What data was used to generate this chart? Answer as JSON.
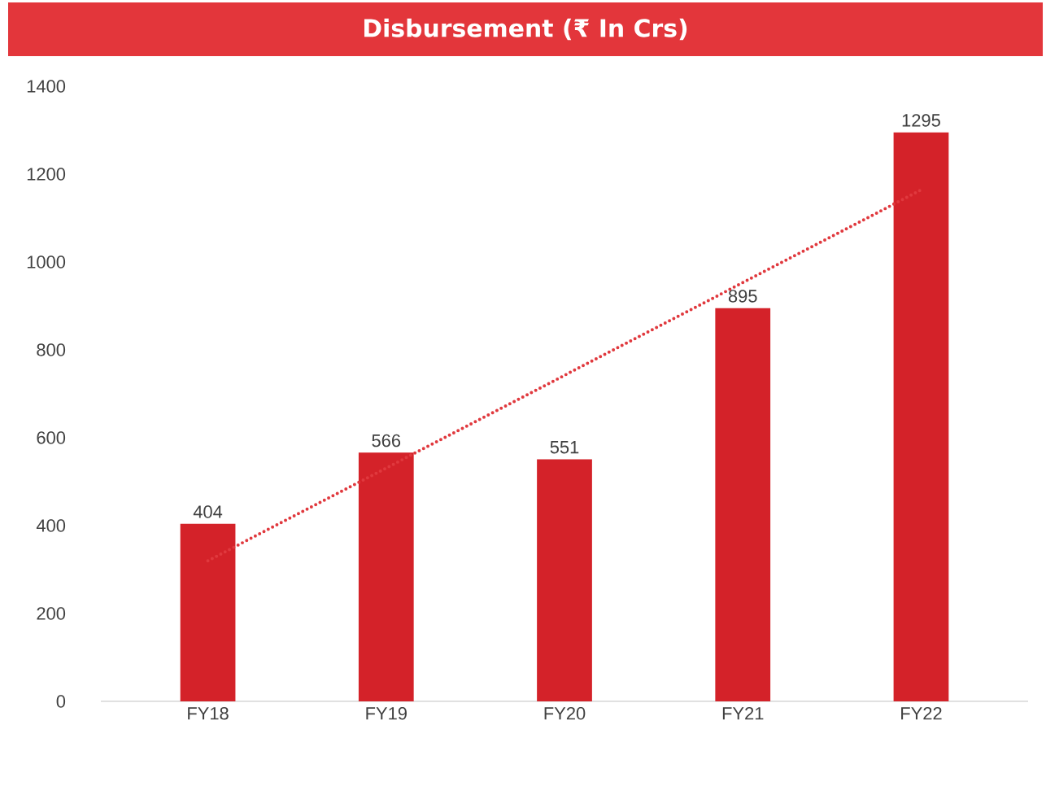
{
  "chart_data": {
    "type": "bar",
    "title": "Disbursement (₹ In Crs)",
    "categories": [
      "FY18",
      "FY19",
      "FY20",
      "FY21",
      "FY22"
    ],
    "series": [
      {
        "color": "#d42229",
        "values": [
          404,
          566,
          551,
          895,
          1295
        ],
        "value_labels": [
          "404",
          "566",
          "551",
          "895",
          "1295"
        ]
      },
      {
        "type": "line",
        "color": "#e0393e",
        "line_style": "dotted",
        "x": [
          "FY18",
          "FY22"
        ],
        "values": [
          320,
          1164
        ]
      }
    ],
    "ylim": [
      0,
      1400
    ],
    "yticks": [
      0,
      200,
      400,
      600,
      800,
      1000,
      1200,
      1400
    ]
  }
}
